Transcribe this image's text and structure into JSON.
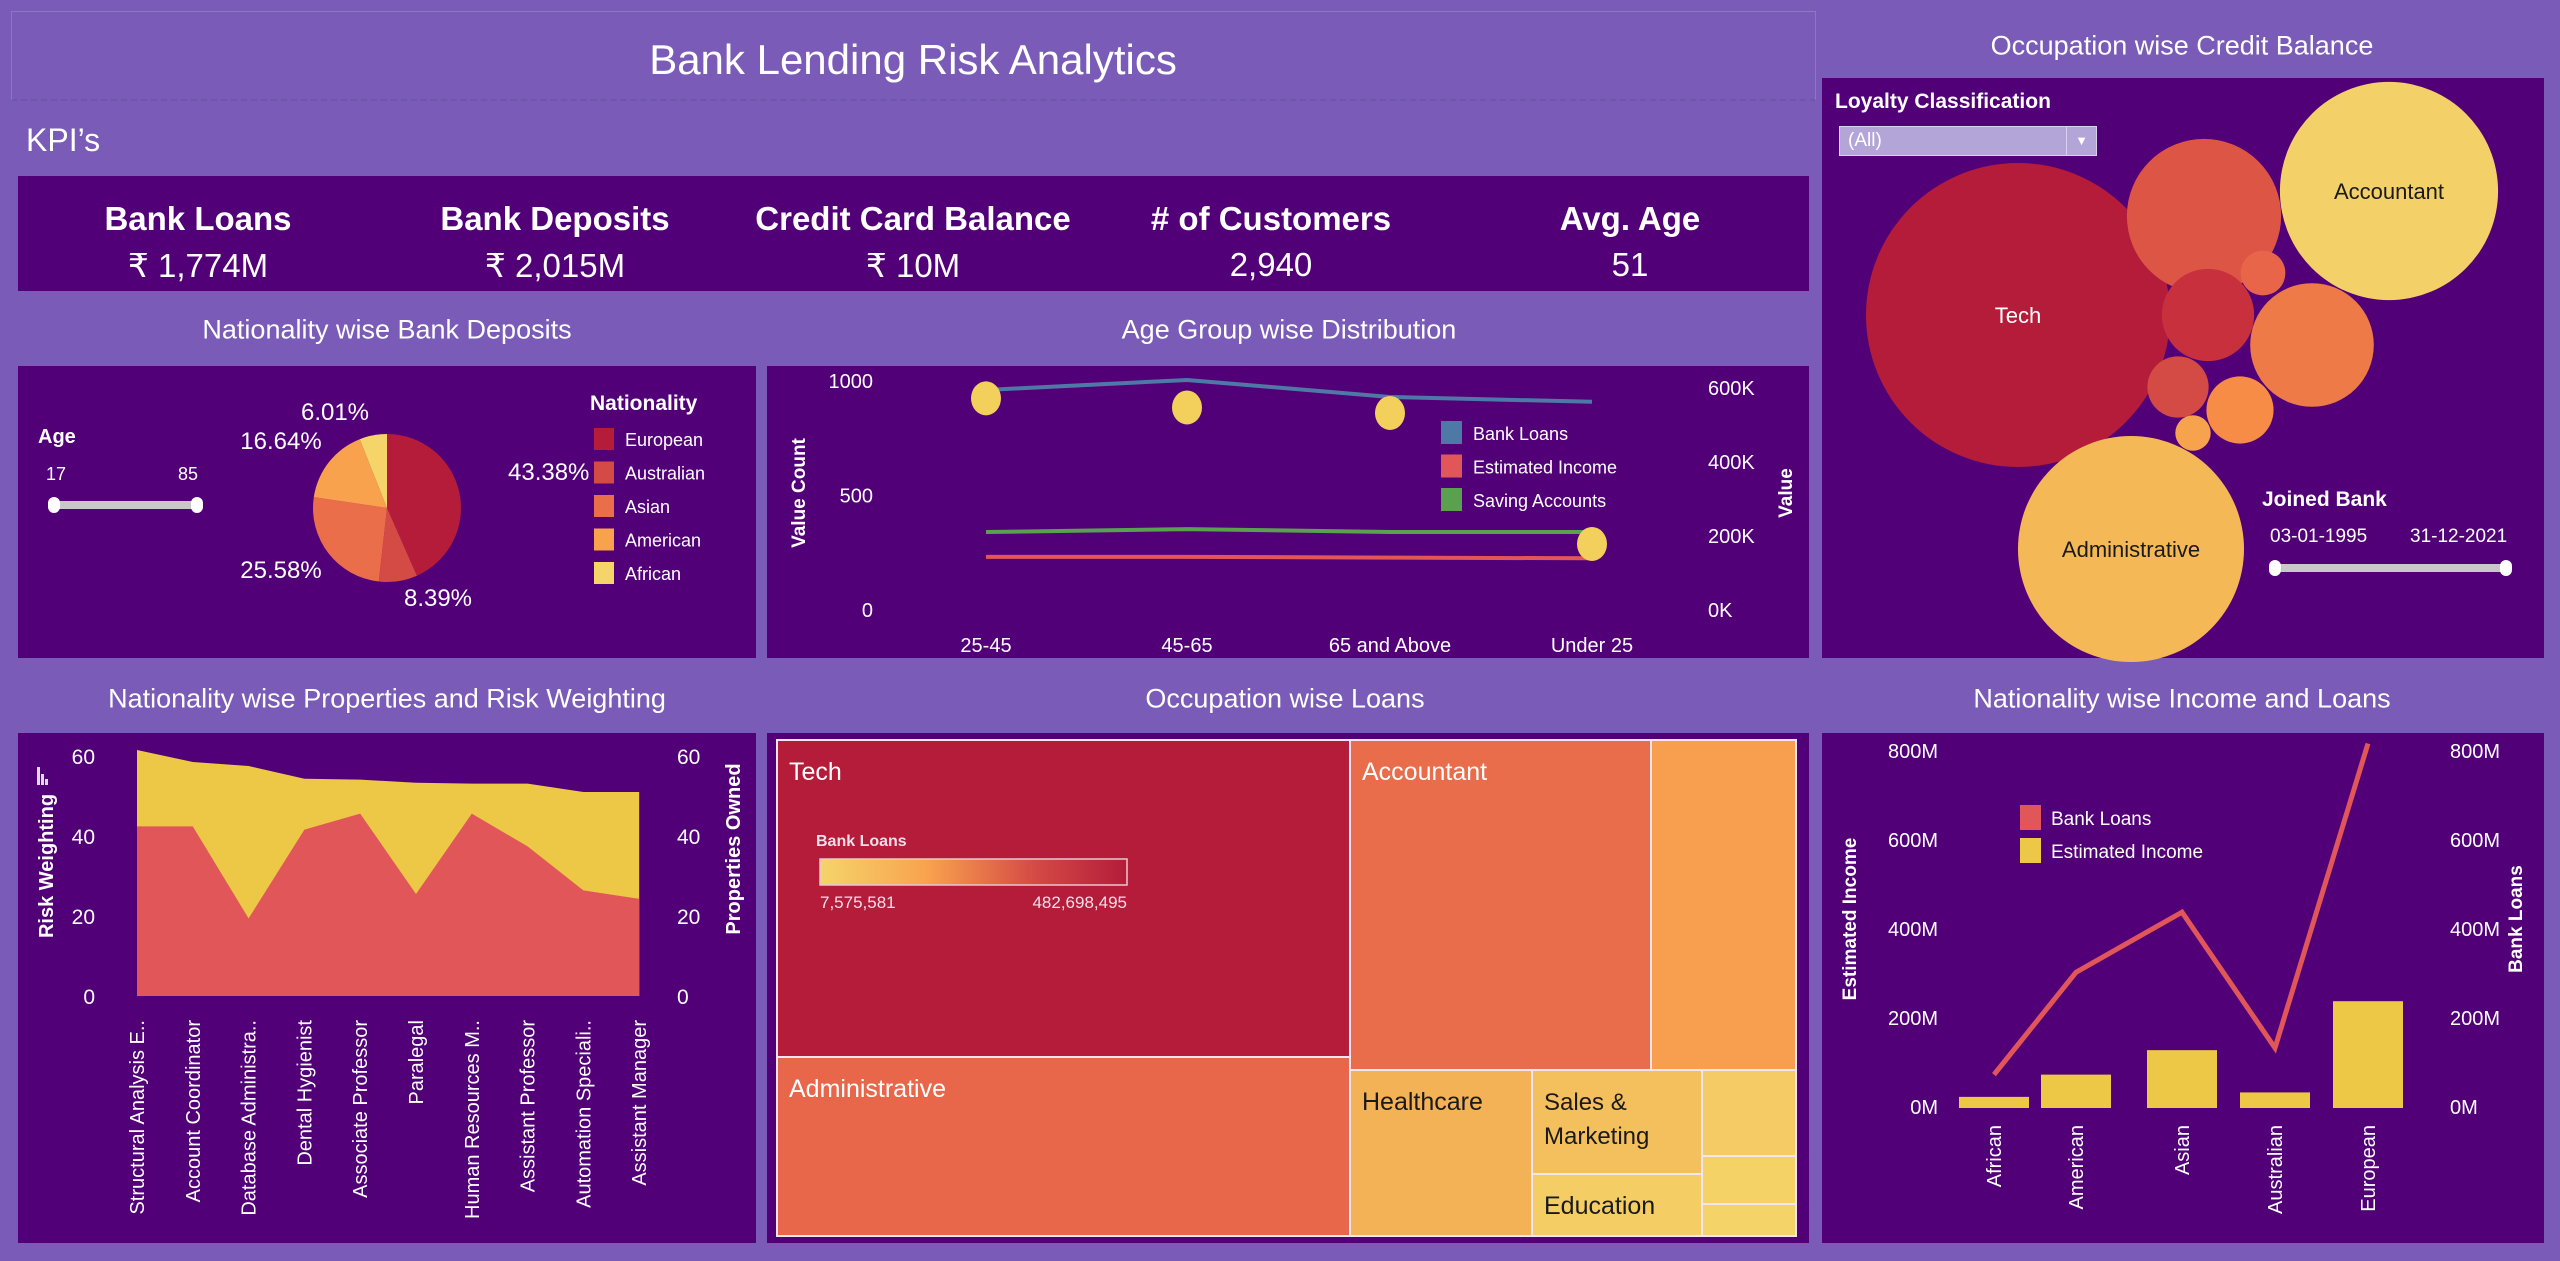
{
  "header": {
    "title": "Bank Lending Risk Analytics",
    "kpi_section": "KPI’s"
  },
  "kpis": [
    {
      "label": "Bank Loans",
      "value": "₹ 1,774M"
    },
    {
      "label": "Bank Deposits",
      "value": "₹ 2,015M"
    },
    {
      "label": "Credit Card Balance",
      "value": "₹ 10M"
    },
    {
      "label": "# of Customers",
      "value": "2,940"
    },
    {
      "label": "Avg. Age",
      "value": "51"
    }
  ],
  "panels": {
    "deposits": "Nationality wise Bank Deposits",
    "age_group": "Age Group wise Distribution",
    "credit": "Occupation wise Credit Balance",
    "properties": "Nationality wise Properties and Risk Weighting",
    "loans_treemap": "Occupation wise Loans",
    "income_loans": "Nationality wise Income and Loans"
  },
  "filters": {
    "age": {
      "label": "Age",
      "min": "17",
      "max": "85"
    },
    "loyalty": {
      "label": "Loyalty Classification",
      "selected": "(All)"
    },
    "joined_bank": {
      "label": "Joined Bank",
      "start": "03-01-1995",
      "end": "31-12-2021"
    }
  },
  "colors": {
    "background": "#7a5cb8",
    "panel": "#520078",
    "slider": "#c8c8c8"
  },
  "chart_data": [
    {
      "id": "deposits_pie",
      "type": "pie",
      "legend_title": "Nationality",
      "legend_position": "right",
      "categories": [
        "European",
        "Australian",
        "Asian",
        "American",
        "African"
      ],
      "values": [
        43.38,
        8.39,
        25.58,
        16.64,
        6.01
      ],
      "labels": [
        "43.38%",
        "8.39%",
        "25.58%",
        "16.64%",
        "6.01%"
      ],
      "colors": [
        "#b41c3a",
        "#d44a45",
        "#ea6e49",
        "#f9a24e",
        "#f5d46a"
      ]
    },
    {
      "id": "age_group",
      "type": "line",
      "categories": [
        "25-45",
        "45-65",
        "65 and Above",
        "Under 25"
      ],
      "ylabel": "Value Count",
      "ylabel_right": "Value",
      "yticks": [
        "0",
        "500",
        "1000"
      ],
      "yticks_right": [
        "0K",
        "200K",
        "400K",
        "600K"
      ],
      "ylim": [
        0,
        1000
      ],
      "ylim_right": [
        0,
        600000
      ],
      "count_series": {
        "values": [
          920,
          880,
          856,
          284
        ],
        "color": "#f3cf5c"
      },
      "series": [
        {
          "name": "Bank Loans",
          "values": [
            592000,
            619000,
            573000,
            560000
          ],
          "color": "#4e79a7"
        },
        {
          "name": "Estimated Income",
          "values": [
            141000,
            141000,
            139000,
            137000
          ],
          "color": "#e15759"
        },
        {
          "name": "Saving Accounts",
          "values": [
            208000,
            216000,
            208000,
            208000
          ],
          "color": "#59a14f"
        }
      ],
      "legend_position": "right"
    },
    {
      "id": "credit_bubbles",
      "type": "bubble",
      "bubbles": [
        {
          "label": "Tech",
          "value_m": 3.69,
          "color": "#b41c3a"
        },
        {
          "label": "Accountant",
          "value_m": 1.9,
          "color": "#f3d068"
        },
        {
          "label": "Administrative",
          "value_m": 2.04,
          "color": "#f5b857"
        },
        {
          "label": "",
          "value_m": 0.95,
          "color": "#dd5545"
        },
        {
          "label": "",
          "value_m": 0.08,
          "color": "#e8654a"
        },
        {
          "label": "",
          "value_m": 0.34,
          "color": "#c8303e"
        },
        {
          "label": "",
          "value_m": 0.61,
          "color": "#ee7a48"
        },
        {
          "label": "",
          "value_m": 0.15,
          "color": "#d44a45"
        },
        {
          "label": "",
          "value_m": 0.18,
          "color": "#f78c47"
        },
        {
          "label": "",
          "value_m": 0.05,
          "color": "#f7a34e"
        }
      ]
    },
    {
      "id": "properties_risk",
      "type": "area",
      "categories": [
        "Structural Analysis E..",
        "Account Coordinator",
        "Database Administra..",
        "Dental Hygienist",
        "Associate Professor",
        "Paralegal",
        "Human Resources M..",
        "Assistant Professor",
        "Automation Speciali..",
        "Assistant Manager"
      ],
      "ylabel": "Risk Weighting",
      "ylabel_right": "Properties Owned",
      "yticks": [
        "0",
        "20",
        "40",
        "60"
      ],
      "ylim": [
        0,
        60
      ],
      "series": [
        {
          "values": [
            61.5,
            58.5,
            57.5,
            54.3,
            54.1,
            53.3,
            53.1,
            53.1,
            51,
            51
          ],
          "color": "#ecc846"
        },
        {
          "values": [
            42.4,
            42.4,
            19.4,
            41.6,
            45.6,
            25.5,
            45.6,
            37.4,
            26.4,
            24.3
          ],
          "color": "#e15759"
        }
      ]
    },
    {
      "id": "loans_treemap",
      "type": "treemap",
      "legend_title": "Bank Loans",
      "legend_min": "7,575,581",
      "legend_max": "482,698,495",
      "items": [
        {
          "label": "Tech",
          "color": "#b41c3a",
          "text": "#ffffff"
        },
        {
          "label": "Administrative",
          "color": "#e8674a",
          "text": "#ffffff"
        },
        {
          "label": "Accountant",
          "color": "#e96c4b",
          "text": "#ffffff"
        },
        {
          "label": "",
          "color": "#f79f4f",
          "text": "#ffffff"
        },
        {
          "label": "Healthcare",
          "color": "#f4b257",
          "text": "#1a1a1a"
        },
        {
          "label": "Sales &\nMarketing",
          "color": "#f4bf5d",
          "text": "#1a1a1a"
        },
        {
          "label": "Education",
          "color": "#f4cd64",
          "text": "#1a1a1a"
        },
        {
          "label": "",
          "color": "#f4cb64",
          "text": "#1a1a1a"
        },
        {
          "label": "",
          "color": "#f4d266",
          "text": "#1a1a1a"
        },
        {
          "label": "",
          "color": "#f4d468",
          "text": "#1a1a1a"
        }
      ]
    },
    {
      "id": "income_loans",
      "type": "bar+line",
      "categories": [
        "African",
        "American",
        "Asian",
        "Australian",
        "European"
      ],
      "ylabel": "Estimated Income",
      "ylabel_right": "Bank Loans",
      "yticks": [
        "0M",
        "200M",
        "400M",
        "600M",
        "800M"
      ],
      "ylim": [
        0,
        800
      ],
      "series": [
        {
          "name": "Bank Loans",
          "type": "line",
          "values": [
            75,
            305,
            440,
            135,
            819
          ],
          "color": "#e15759"
        },
        {
          "name": "Estimated Income",
          "type": "bar",
          "values": [
            25,
            75,
            130,
            35,
            240
          ],
          "color": "#ecc846"
        }
      ],
      "legend_position": "top-left"
    }
  ]
}
